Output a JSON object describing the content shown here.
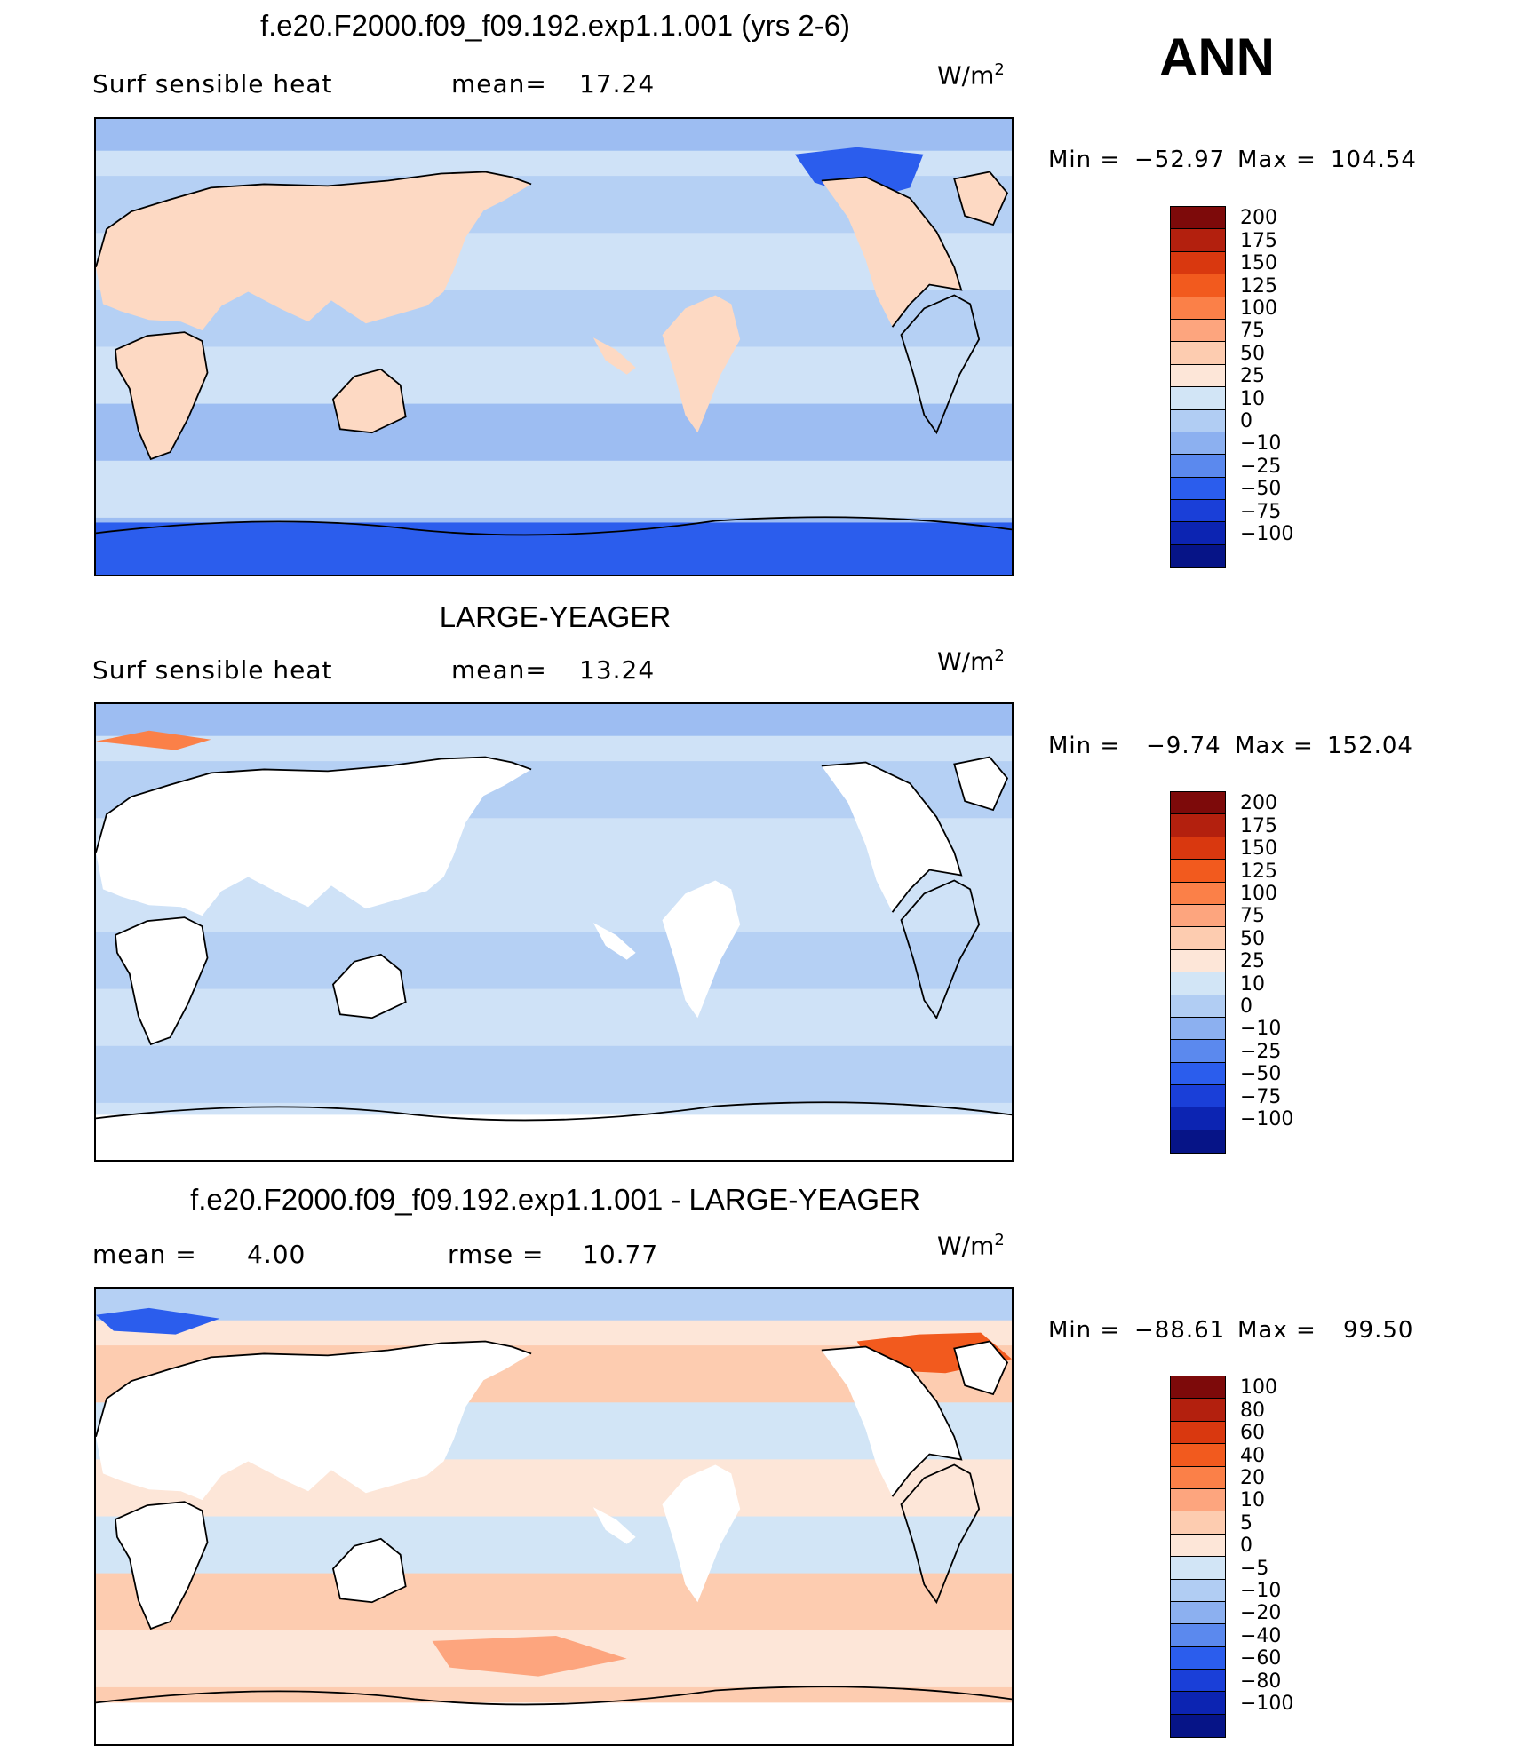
{
  "page_label": "ANN",
  "panels": [
    {
      "title": "f.e20.F2000.f09_f09.192.exp1.1.001 (yrs 2-6)",
      "left_label": "Surf  sensible  heat",
      "stat_label": "mean=",
      "stat_value": "17.24",
      "units_base": "W/m",
      "units_sup": "2",
      "min_label": "Min  =",
      "min_value": "−52.97",
      "max_label": "Max  =",
      "max_value": "104.54",
      "map_kind": "model",
      "colors": [
        "#7d0a0a",
        "#b3200e",
        "#d9380f",
        "#f25a1e",
        "#fb8048",
        "#fda57e",
        "#fdccb0",
        "#fde6d8",
        "#d2e5f6",
        "#b1cdf3",
        "#8cb0f0",
        "#5b89ee",
        "#2b5ded",
        "#1a3fd8",
        "#0c24b2",
        "#061487"
      ],
      "levels": [
        "200",
        "175",
        "150",
        "125",
        "100",
        "75",
        "50",
        "25",
        "10",
        "0",
        "−10",
        "−25",
        "−50",
        "−75",
        "−100"
      ]
    },
    {
      "title": "LARGE-YEAGER",
      "left_label": "Surf  sensible  heat",
      "stat_label": "mean=",
      "stat_value": "13.24",
      "units_base": "W/m",
      "units_sup": "2",
      "min_label": "Min  =",
      "min_value": "−9.74",
      "max_label": "Max  =",
      "max_value": "152.04",
      "map_kind": "obs",
      "colors": [
        "#7d0a0a",
        "#b3200e",
        "#d9380f",
        "#f25a1e",
        "#fb8048",
        "#fda57e",
        "#fdccb0",
        "#fde6d8",
        "#d2e5f6",
        "#b1cdf3",
        "#8cb0f0",
        "#5b89ee",
        "#2b5ded",
        "#1a3fd8",
        "#0c24b2",
        "#061487"
      ],
      "levels": [
        "200",
        "175",
        "150",
        "125",
        "100",
        "75",
        "50",
        "25",
        "10",
        "0",
        "−10",
        "−25",
        "−50",
        "−75",
        "−100"
      ]
    },
    {
      "title": "f.e20.F2000.f09_f09.192.exp1.1.001 - LARGE-YEAGER",
      "left_label": "mean  =",
      "left_value": "4.00",
      "stat_label": "rmse  =",
      "stat_value": "10.77",
      "units_base": "W/m",
      "units_sup": "2",
      "min_label": "Min  =",
      "min_value": "−88.61",
      "max_label": "Max  =",
      "max_value": "99.50",
      "map_kind": "diff",
      "colors": [
        "#7d0a0a",
        "#b3200e",
        "#d9380f",
        "#f25a1e",
        "#fb8048",
        "#fda57e",
        "#fdccb0",
        "#fde6d8",
        "#d2e5f6",
        "#b1cdf3",
        "#8cb0f0",
        "#5b89ee",
        "#2b5ded",
        "#1a3fd8",
        "#0c24b2",
        "#061487"
      ],
      "levels": [
        "100",
        "80",
        "60",
        "40",
        "20",
        "10",
        "5",
        "0",
        "−5",
        "−10",
        "−20",
        "−40",
        "−60",
        "−80",
        "−100"
      ]
    }
  ]
}
